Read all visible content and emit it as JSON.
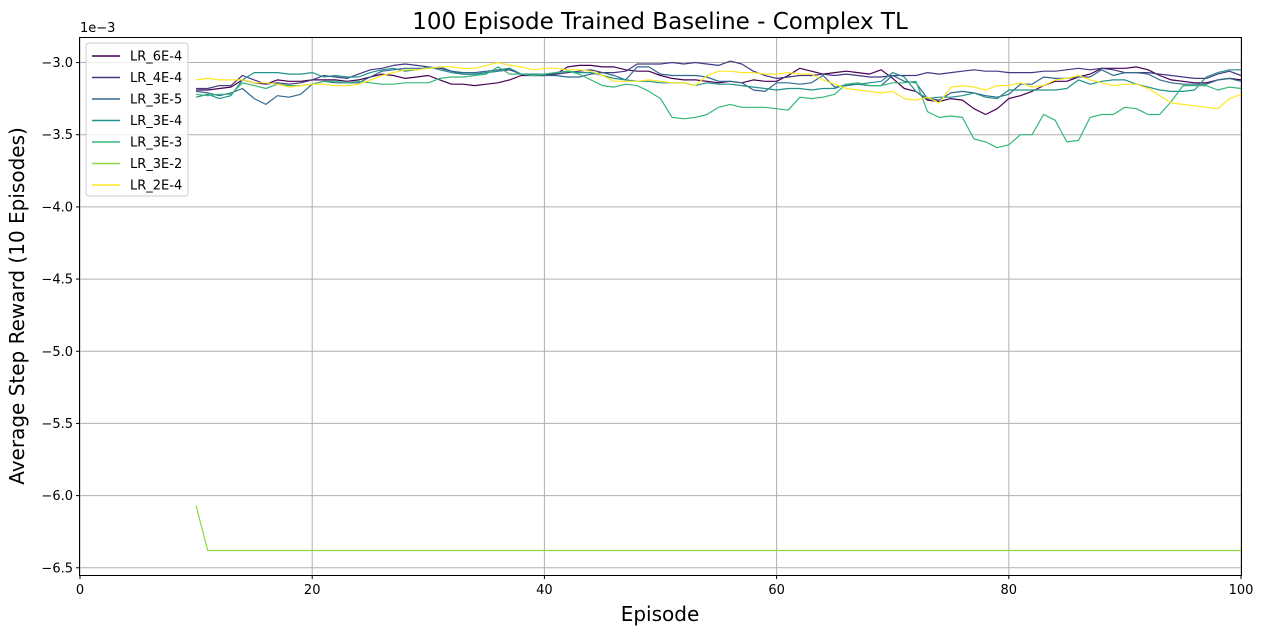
{
  "chart_data": {
    "type": "line",
    "title": "100 Episode Trained Baseline - Complex TL",
    "xlabel": "Episode",
    "ylabel": "Average Step Reward (10 Episodes)",
    "y_scale_label": "1e−3",
    "xlim": [
      0,
      100
    ],
    "ylim": [
      -6.55,
      -2.83
    ],
    "xticks": [
      0,
      20,
      40,
      60,
      80,
      100
    ],
    "xtick_labels": [
      "0",
      "20",
      "40",
      "60",
      "80",
      "100"
    ],
    "yticks": [
      -3.0,
      -3.5,
      -4.0,
      -4.5,
      -5.0,
      -5.5,
      -6.0,
      -6.5
    ],
    "ytick_labels": [
      "−3.0",
      "−3.5",
      "−4.0",
      "−4.5",
      "−5.0",
      "−5.5",
      "−6.0",
      "−6.5"
    ],
    "grid": true,
    "legend_position": "top-left",
    "series": [
      {
        "name": "LR_6E-4",
        "color": "#440154",
        "x_start": 10,
        "values": [
          -3.19,
          -3.19,
          -3.18,
          -3.17,
          -3.12,
          -3.14,
          -3.15,
          -3.12,
          -3.13,
          -3.13,
          -3.12,
          -3.12,
          -3.12,
          -3.13,
          -3.12,
          -3.1,
          -3.08,
          -3.09,
          -3.11,
          -3.1,
          -3.09,
          -3.12,
          -3.15,
          -3.15,
          -3.16,
          -3.15,
          -3.14,
          -3.12,
          -3.09,
          -3.09,
          -3.09,
          -3.08,
          -3.03,
          -3.02,
          -3.02,
          -3.03,
          -3.03,
          -3.05,
          -3.06,
          -3.06,
          -3.09,
          -3.11,
          -3.12,
          -3.12,
          -3.13,
          -3.14,
          -3.13,
          -3.14,
          -3.12,
          -3.13,
          -3.13,
          -3.09,
          -3.04,
          -3.06,
          -3.08,
          -3.07,
          -3.06,
          -3.07,
          -3.08,
          -3.05,
          -3.11,
          -3.18,
          -3.2,
          -3.26,
          -3.27,
          -3.25,
          -3.26,
          -3.32,
          -3.36,
          -3.32,
          -3.25,
          -3.23,
          -3.2,
          -3.16,
          -3.13,
          -3.13,
          -3.1,
          -3.08,
          -3.04,
          -3.04,
          -3.04,
          -3.03,
          -3.05,
          -3.09,
          -3.12,
          -3.13,
          -3.14,
          -3.14,
          -3.12,
          -3.11,
          -3.12
        ]
      },
      {
        "name": "LR_4E-4",
        "color": "#443983",
        "x_start": 10,
        "values": [
          -3.18,
          -3.18,
          -3.16,
          -3.16,
          -3.09,
          -3.12,
          -3.15,
          -3.14,
          -3.15,
          -3.14,
          -3.12,
          -3.09,
          -3.1,
          -3.11,
          -3.08,
          -3.05,
          -3.04,
          -3.02,
          -3.01,
          -3.02,
          -3.03,
          -3.04,
          -3.06,
          -3.08,
          -3.08,
          -3.07,
          -3.06,
          -3.05,
          -3.08,
          -3.08,
          -3.08,
          -3.08,
          -3.07,
          -3.06,
          -3.05,
          -3.07,
          -3.07,
          -3.06,
          -3.01,
          -3.01,
          -3.01,
          -3.0,
          -3.01,
          -3.0,
          -3.01,
          -3.02,
          -2.99,
          -3.01,
          -3.06,
          -3.09,
          -3.11,
          -3.1,
          -3.09,
          -3.09,
          -3.08,
          -3.09,
          -3.08,
          -3.09,
          -3.1,
          -3.1,
          -3.09,
          -3.09,
          -3.09,
          -3.07,
          -3.08,
          -3.07,
          -3.06,
          -3.05,
          -3.06,
          -3.06,
          -3.07,
          -3.07,
          -3.07,
          -3.06,
          -3.06,
          -3.05,
          -3.04,
          -3.05,
          -3.04,
          -3.05,
          -3.07,
          -3.07,
          -3.07,
          -3.08,
          -3.09,
          -3.1,
          -3.11,
          -3.11,
          -3.08,
          -3.06,
          -3.09
        ]
      },
      {
        "name": "LR_3E-5",
        "color": "#31688e",
        "x_start": 10,
        "values": [
          -3.2,
          -3.21,
          -3.23,
          -3.21,
          -3.18,
          -3.25,
          -3.29,
          -3.23,
          -3.24,
          -3.22,
          -3.15,
          -3.13,
          -3.14,
          -3.14,
          -3.14,
          -3.1,
          -3.06,
          -3.05,
          -3.04,
          -3.04,
          -3.04,
          -3.03,
          -3.06,
          -3.07,
          -3.07,
          -3.06,
          -3.05,
          -3.04,
          -3.08,
          -3.09,
          -3.09,
          -3.09,
          -3.1,
          -3.1,
          -3.08,
          -3.07,
          -3.09,
          -3.12,
          -3.03,
          -3.03,
          -3.08,
          -3.09,
          -3.09,
          -3.09,
          -3.1,
          -3.13,
          -3.13,
          -3.14,
          -3.19,
          -3.2,
          -3.14,
          -3.14,
          -3.15,
          -3.14,
          -3.09,
          -3.17,
          -3.16,
          -3.15,
          -3.16,
          -3.16,
          -3.09,
          -3.13,
          -3.14,
          -3.25,
          -3.26,
          -3.21,
          -3.2,
          -3.21,
          -3.23,
          -3.24,
          -3.22,
          -3.15,
          -3.15,
          -3.1,
          -3.11,
          -3.11,
          -3.1,
          -3.1,
          -3.05,
          -3.09,
          -3.07,
          -3.07,
          -3.08,
          -3.12,
          -3.14,
          -3.15,
          -3.15,
          -3.15,
          -3.12,
          -3.11,
          -3.13
        ]
      },
      {
        "name": "LR_3E-4",
        "color": "#21918c",
        "x_start": 10,
        "values": [
          -3.24,
          -3.22,
          -3.25,
          -3.23,
          -3.12,
          -3.07,
          -3.07,
          -3.07,
          -3.08,
          -3.08,
          -3.07,
          -3.1,
          -3.09,
          -3.1,
          -3.1,
          -3.07,
          -3.05,
          -3.04,
          -3.06,
          -3.05,
          -3.03,
          -3.05,
          -3.07,
          -3.08,
          -3.08,
          -3.07,
          -3.06,
          -3.04,
          -3.08,
          -3.08,
          -3.08,
          -3.07,
          -3.06,
          -3.07,
          -3.07,
          -3.09,
          -3.11,
          -3.12,
          -3.13,
          -3.13,
          -3.14,
          -3.14,
          -3.14,
          -3.16,
          -3.14,
          -3.15,
          -3.15,
          -3.16,
          -3.17,
          -3.18,
          -3.19,
          -3.18,
          -3.18,
          -3.19,
          -3.18,
          -3.18,
          -3.15,
          -3.15,
          -3.14,
          -3.13,
          -3.07,
          -3.1,
          -3.2,
          -3.25,
          -3.24,
          -3.24,
          -3.23,
          -3.21,
          -3.24,
          -3.25,
          -3.19,
          -3.19,
          -3.19,
          -3.19,
          -3.19,
          -3.18,
          -3.12,
          -3.15,
          -3.13,
          -3.12,
          -3.12,
          -3.15,
          -3.17,
          -3.19,
          -3.2,
          -3.2,
          -3.19,
          -3.1,
          -3.07,
          -3.05,
          -3.05
        ]
      },
      {
        "name": "LR_3E-3",
        "color": "#35b779",
        "x_start": 10,
        "values": [
          -3.22,
          -3.23,
          -3.22,
          -3.22,
          -3.14,
          -3.16,
          -3.18,
          -3.15,
          -3.16,
          -3.16,
          -3.15,
          -3.13,
          -3.13,
          -3.14,
          -3.13,
          -3.14,
          -3.15,
          -3.15,
          -3.14,
          -3.14,
          -3.14,
          -3.11,
          -3.1,
          -3.1,
          -3.09,
          -3.08,
          -3.03,
          -3.08,
          -3.08,
          -3.09,
          -3.08,
          -3.07,
          -3.06,
          -3.08,
          -3.12,
          -3.16,
          -3.17,
          -3.15,
          -3.16,
          -3.2,
          -3.25,
          -3.38,
          -3.39,
          -3.38,
          -3.36,
          -3.31,
          -3.29,
          -3.31,
          -3.31,
          -3.31,
          -3.32,
          -3.33,
          -3.24,
          -3.25,
          -3.24,
          -3.22,
          -3.15,
          -3.14,
          -3.16,
          -3.16,
          -3.14,
          -3.14,
          -3.13,
          -3.34,
          -3.38,
          -3.37,
          -3.38,
          -3.53,
          -3.55,
          -3.59,
          -3.57,
          -3.5,
          -3.5,
          -3.36,
          -3.4,
          -3.55,
          -3.54,
          -3.38,
          -3.36,
          -3.36,
          -3.31,
          -3.32,
          -3.36,
          -3.36,
          -3.27,
          -3.16,
          -3.16,
          -3.16,
          -3.19,
          -3.17,
          -3.18
        ]
      },
      {
        "name": "LR_3E-2",
        "color": "#90d743",
        "x_start": 10,
        "values": [
          -6.07,
          -6.38,
          -6.38,
          -6.38,
          -6.38,
          -6.38,
          -6.38,
          -6.38,
          -6.38,
          -6.38,
          -6.38,
          -6.38,
          -6.38,
          -6.38,
          -6.38,
          -6.38,
          -6.38,
          -6.38,
          -6.38,
          -6.38,
          -6.38,
          -6.38,
          -6.38,
          -6.38,
          -6.38,
          -6.38,
          -6.38,
          -6.38,
          -6.38,
          -6.38,
          -6.38,
          -6.38,
          -6.38,
          -6.38,
          -6.38,
          -6.38,
          -6.38,
          -6.38,
          -6.38,
          -6.38,
          -6.38,
          -6.38,
          -6.38,
          -6.38,
          -6.38,
          -6.38,
          -6.38,
          -6.38,
          -6.38,
          -6.38,
          -6.38,
          -6.38,
          -6.38,
          -6.38,
          -6.38,
          -6.38,
          -6.38,
          -6.38,
          -6.38,
          -6.38,
          -6.38,
          -6.38,
          -6.38,
          -6.38,
          -6.38,
          -6.38,
          -6.38,
          -6.38,
          -6.38,
          -6.38,
          -6.38,
          -6.38,
          -6.38,
          -6.38,
          -6.38,
          -6.38,
          -6.38,
          -6.38,
          -6.38,
          -6.38,
          -6.38,
          -6.38,
          -6.38,
          -6.38,
          -6.38,
          -6.38,
          -6.38,
          -6.38,
          -6.38,
          -6.38,
          -6.38
        ]
      },
      {
        "name": "LR_2E-4",
        "color": "#fde725",
        "x_start": 10,
        "values": [
          -3.12,
          -3.11,
          -3.12,
          -3.12,
          -3.12,
          -3.14,
          -3.14,
          -3.15,
          -3.17,
          -3.16,
          -3.15,
          -3.15,
          -3.16,
          -3.16,
          -3.15,
          -3.12,
          -3.09,
          -3.07,
          -3.05,
          -3.05,
          -3.04,
          -3.03,
          -3.03,
          -3.04,
          -3.04,
          -3.02,
          -3.0,
          -3.02,
          -3.03,
          -3.05,
          -3.04,
          -3.04,
          -3.05,
          -3.05,
          -3.06,
          -3.09,
          -3.13,
          -3.13,
          -3.13,
          -3.12,
          -3.13,
          -3.14,
          -3.14,
          -3.16,
          -3.09,
          -3.06,
          -3.06,
          -3.07,
          -3.07,
          -3.08,
          -3.08,
          -3.07,
          -3.08,
          -3.08,
          -3.12,
          -3.15,
          -3.18,
          -3.19,
          -3.2,
          -3.21,
          -3.2,
          -3.25,
          -3.26,
          -3.24,
          -3.28,
          -3.17,
          -3.16,
          -3.17,
          -3.19,
          -3.16,
          -3.16,
          -3.14,
          -3.17,
          -3.16,
          -3.12,
          -3.11,
          -3.09,
          -3.12,
          -3.14,
          -3.16,
          -3.15,
          -3.15,
          -3.18,
          -3.23,
          -3.28,
          -3.29,
          -3.3,
          -3.31,
          -3.32,
          -3.25,
          -3.22
        ]
      }
    ]
  }
}
